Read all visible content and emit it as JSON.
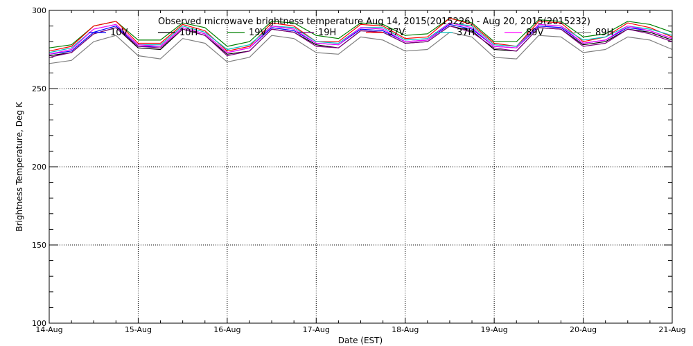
{
  "chart_data": {
    "type": "line",
    "title": "Observed microwave brightness temperature Aug 14, 2015(2015226) - Aug 20, 2015(2015232)",
    "xlabel": "Date (EST)",
    "ylabel": "Brightness Temperature, Deg K",
    "x_tick_labels": [
      "14-Aug",
      "15-Aug",
      "16-Aug",
      "17-Aug",
      "18-Aug",
      "19-Aug",
      "20-Aug",
      "21-Aug"
    ],
    "y_tick_labels": [
      "100",
      "150",
      "200",
      "250",
      "300"
    ],
    "xlim": [
      "2015-08-14",
      "2015-08-21"
    ],
    "ylim": [
      100,
      300
    ],
    "grid": true,
    "legend_position": "top",
    "x": [
      "2015-08-14 00:00",
      "2015-08-14 06:00",
      "2015-08-14 12:00",
      "2015-08-14 18:00",
      "2015-08-15 00:00",
      "2015-08-15 06:00",
      "2015-08-15 12:00",
      "2015-08-15 18:00",
      "2015-08-16 00:00",
      "2015-08-16 06:00",
      "2015-08-16 12:00",
      "2015-08-16 18:00",
      "2015-08-17 00:00",
      "2015-08-17 06:00",
      "2015-08-17 12:00",
      "2015-08-17 18:00",
      "2015-08-18 00:00",
      "2015-08-18 06:00",
      "2015-08-18 12:00",
      "2015-08-18 18:00",
      "2015-08-19 00:00",
      "2015-08-19 06:00",
      "2015-08-19 12:00",
      "2015-08-19 18:00",
      "2015-08-20 00:00",
      "2015-08-20 06:00",
      "2015-08-20 12:00",
      "2015-08-20 18:00",
      "2015-08-21 00:00"
    ],
    "series": [
      {
        "name": "10V",
        "color": "#0000ff",
        "values": [
          272,
          274,
          286,
          290,
          277,
          277,
          289,
          285,
          273,
          276,
          289,
          287,
          279,
          278,
          288,
          287,
          280,
          281,
          291,
          288,
          277,
          276,
          290,
          289,
          279,
          281,
          289,
          287,
          282
        ]
      },
      {
        "name": "10H",
        "color": "#000000",
        "values": [
          271,
          273,
          285,
          289,
          276,
          275,
          288,
          284,
          272,
          274,
          288,
          286,
          278,
          276,
          287,
          286,
          279,
          280,
          290,
          287,
          275,
          274,
          289,
          288,
          278,
          280,
          288,
          286,
          281
        ]
      },
      {
        "name": "19V",
        "color": "#008000",
        "values": [
          276,
          278,
          290,
          293,
          281,
          281,
          292,
          289,
          277,
          280,
          293,
          292,
          284,
          282,
          292,
          291,
          284,
          285,
          295,
          292,
          280,
          280,
          294,
          293,
          283,
          285,
          293,
          291,
          286
        ]
      },
      {
        "name": "19H",
        "color": "#800080",
        "values": [
          270,
          273,
          285,
          289,
          277,
          276,
          288,
          284,
          271,
          274,
          288,
          286,
          277,
          276,
          287,
          286,
          279,
          280,
          290,
          286,
          276,
          274,
          289,
          288,
          277,
          279,
          288,
          285,
          280
        ]
      },
      {
        "name": "37V",
        "color": "#ff0000",
        "values": [
          274,
          277,
          290,
          293,
          279,
          279,
          291,
          287,
          274,
          277,
          292,
          290,
          280,
          280,
          291,
          290,
          282,
          283,
          295,
          291,
          279,
          277,
          293,
          292,
          280,
          283,
          292,
          289,
          283
        ]
      },
      {
        "name": "37H",
        "color": "#00bfbf",
        "values": [
          273,
          276,
          288,
          291,
          278,
          278,
          290,
          286,
          275,
          278,
          290,
          289,
          280,
          279,
          289,
          289,
          281,
          282,
          292,
          290,
          278,
          277,
          291,
          290,
          281,
          283,
          290,
          288,
          284
        ]
      },
      {
        "name": "89V",
        "color": "#ff00ff",
        "values": [
          272,
          275,
          288,
          291,
          278,
          277,
          289,
          285,
          273,
          276,
          290,
          288,
          279,
          278,
          289,
          288,
          280,
          281,
          292,
          289,
          277,
          276,
          291,
          290,
          279,
          281,
          290,
          287,
          282
        ]
      },
      {
        "name": "89H",
        "color": "#808080",
        "values": [
          266,
          268,
          280,
          284,
          271,
          269,
          282,
          279,
          267,
          270,
          284,
          282,
          273,
          272,
          283,
          281,
          274,
          275,
          286,
          283,
          270,
          269,
          284,
          283,
          273,
          275,
          283,
          281,
          275
        ]
      }
    ]
  }
}
